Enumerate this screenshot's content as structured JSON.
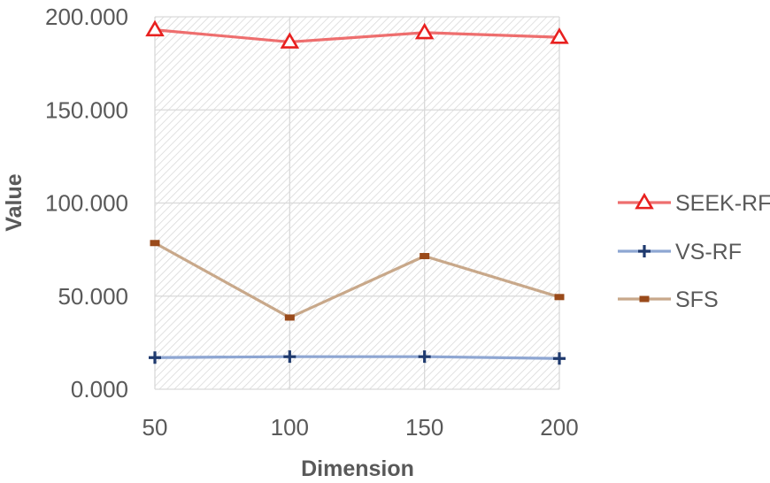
{
  "chart_data": {
    "type": "line",
    "title": "",
    "xlabel": "Dimension",
    "ylabel": "Value",
    "x": [
      50,
      100,
      150,
      200
    ],
    "x_tick_labels": [
      "50",
      "100",
      "150",
      "200"
    ],
    "ylim": [
      0,
      200
    ],
    "y_ticks": [
      0,
      50,
      100,
      150,
      200
    ],
    "y_tick_labels": [
      "0.000",
      "50.000",
      "100.000",
      "150.000",
      "200.000"
    ],
    "grid": true,
    "legend_position": "right",
    "series": [
      {
        "name": "SEEK-RF",
        "values": [
          193,
          186.5,
          191.5,
          189
        ],
        "color": "#ee6e6e",
        "marker_color": "#e8201f",
        "marker": "triangle"
      },
      {
        "name": "VS-RF",
        "values": [
          17,
          17.5,
          17.5,
          16.5
        ],
        "color": "#8ea6d2",
        "marker_color": "#1f3a6e",
        "marker": "plus"
      },
      {
        "name": "SFS",
        "values": [
          78.5,
          38.5,
          71.5,
          49.5
        ],
        "color": "#c8a88a",
        "marker_color": "#9a4a1a",
        "marker": "square"
      }
    ]
  }
}
